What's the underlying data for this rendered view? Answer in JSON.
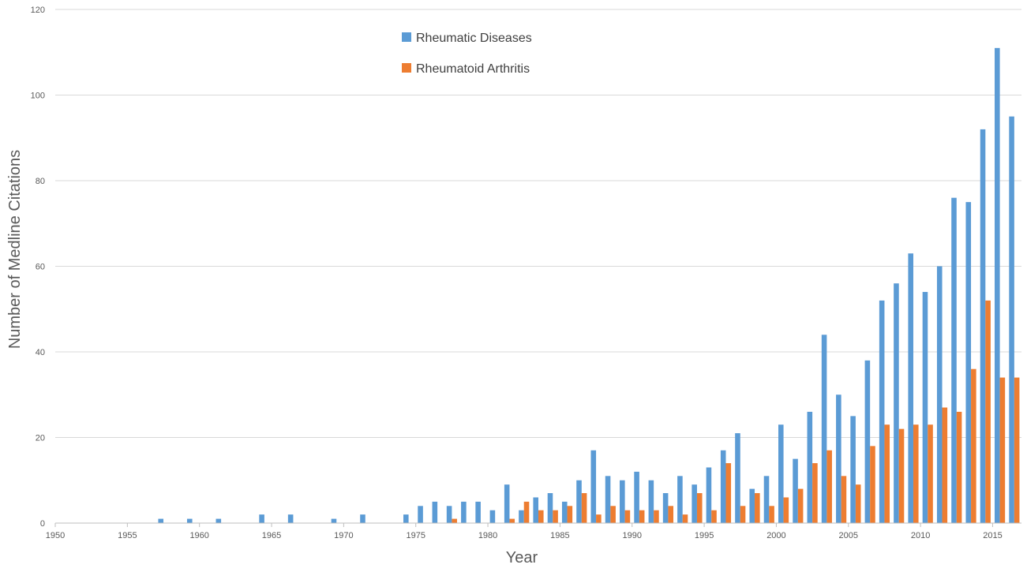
{
  "chart_data": {
    "type": "bar",
    "xlabel": "Year",
    "ylabel": "Number of Medline Citations",
    "ylim": [
      0,
      120
    ],
    "yticks": [
      "0",
      "20",
      "40",
      "60",
      "80",
      "100",
      "120"
    ],
    "xlim": [
      1950,
      2016
    ],
    "xticks": [
      "1950",
      "1955",
      "1960",
      "1965",
      "1970",
      "1975",
      "1980",
      "1985",
      "1990",
      "1995",
      "2000",
      "2005",
      "2010",
      "2015"
    ],
    "grid": true,
    "legend_position": "top-center",
    "years": [
      1950,
      1951,
      1952,
      1953,
      1954,
      1955,
      1956,
      1957,
      1958,
      1959,
      1960,
      1961,
      1962,
      1963,
      1964,
      1965,
      1966,
      1967,
      1968,
      1969,
      1970,
      1971,
      1972,
      1973,
      1974,
      1975,
      1976,
      1977,
      1978,
      1979,
      1980,
      1981,
      1982,
      1983,
      1984,
      1985,
      1986,
      1987,
      1988,
      1989,
      1990,
      1991,
      1992,
      1993,
      1994,
      1995,
      1996,
      1997,
      1998,
      1999,
      2000,
      2001,
      2002,
      2003,
      2004,
      2005,
      2006,
      2007,
      2008,
      2009,
      2010,
      2011,
      2012,
      2013,
      2014,
      2015,
      2016
    ],
    "series": [
      {
        "name": "Rheumatic Diseases",
        "color": "#5b9bd5",
        "values": [
          0,
          0,
          0,
          0,
          0,
          0,
          0,
          1,
          0,
          1,
          0,
          1,
          0,
          0,
          2,
          0,
          2,
          0,
          0,
          1,
          0,
          2,
          0,
          0,
          2,
          4,
          5,
          4,
          5,
          5,
          3,
          9,
          3,
          6,
          7,
          5,
          10,
          17,
          11,
          10,
          12,
          10,
          7,
          11,
          9,
          13,
          17,
          21,
          8,
          11,
          23,
          15,
          26,
          44,
          30,
          25,
          38,
          52,
          56,
          63,
          54,
          60,
          76,
          75,
          92,
          111,
          95
        ]
      },
      {
        "name": "Rheumatoid Arthritis",
        "color": "#ed7d31",
        "values": [
          0,
          0,
          0,
          0,
          0,
          0,
          0,
          0,
          0,
          0,
          0,
          0,
          0,
          0,
          0,
          0,
          0,
          0,
          0,
          0,
          0,
          0,
          0,
          0,
          0,
          0,
          0,
          1,
          0,
          0,
          0,
          1,
          5,
          3,
          3,
          4,
          7,
          2,
          4,
          3,
          3,
          3,
          4,
          2,
          7,
          3,
          14,
          4,
          7,
          4,
          6,
          8,
          14,
          17,
          11,
          9,
          18,
          23,
          22,
          23,
          23,
          27,
          26,
          36,
          52,
          34,
          34
        ]
      }
    ]
  }
}
